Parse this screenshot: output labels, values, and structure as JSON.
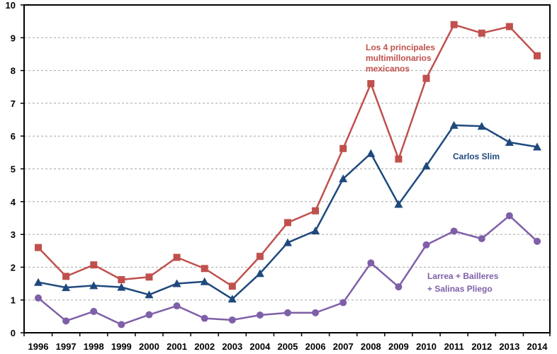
{
  "chart_data": {
    "type": "line",
    "title": "",
    "xlabel": "",
    "ylabel": "",
    "ylim": [
      0,
      10
    ],
    "yticks": [
      0,
      1,
      2,
      3,
      4,
      5,
      6,
      7,
      8,
      9,
      10
    ],
    "grid": true,
    "categories": [
      "1996",
      "1997",
      "1998",
      "1999",
      "2000",
      "2001",
      "2002",
      "2003",
      "2004",
      "2005",
      "2006",
      "2007",
      "2008",
      "2009",
      "2010",
      "2011",
      "2012",
      "2013",
      "2014"
    ],
    "series": [
      {
        "name": "Los 4 principales multimillonarios mexicanos",
        "label_lines": [
          "Los 4 principales",
          "multimillonarios",
          "mexicanos"
        ],
        "color": "#c0504d",
        "marker": "square",
        "values": [
          2.6,
          1.72,
          2.07,
          1.62,
          1.7,
          2.3,
          1.96,
          1.42,
          2.33,
          3.36,
          3.72,
          5.62,
          7.6,
          5.3,
          7.76,
          9.4,
          9.14,
          9.34,
          8.45
        ]
      },
      {
        "name": "Carlos Slim",
        "label_lines": [
          "Carlos Slim"
        ],
        "color": "#1f497d",
        "marker": "triangle",
        "values": [
          1.54,
          1.38,
          1.44,
          1.39,
          1.16,
          1.5,
          1.56,
          1.03,
          1.81,
          2.75,
          3.11,
          4.7,
          5.47,
          3.92,
          5.09,
          6.33,
          6.3,
          5.81,
          5.67
        ]
      },
      {
        "name": "Larrea + Bailleres + Salinas Pliego",
        "label_lines": [
          "Larrea + Bailleres",
          "+ Salinas Pliego"
        ],
        "color": "#7f5fa8",
        "marker": "circle",
        "values": [
          1.06,
          0.36,
          0.65,
          0.25,
          0.55,
          0.82,
          0.44,
          0.39,
          0.54,
          0.61,
          0.61,
          0.92,
          2.13,
          1.4,
          2.68,
          3.1,
          2.87,
          3.57,
          2.79
        ]
      }
    ]
  }
}
